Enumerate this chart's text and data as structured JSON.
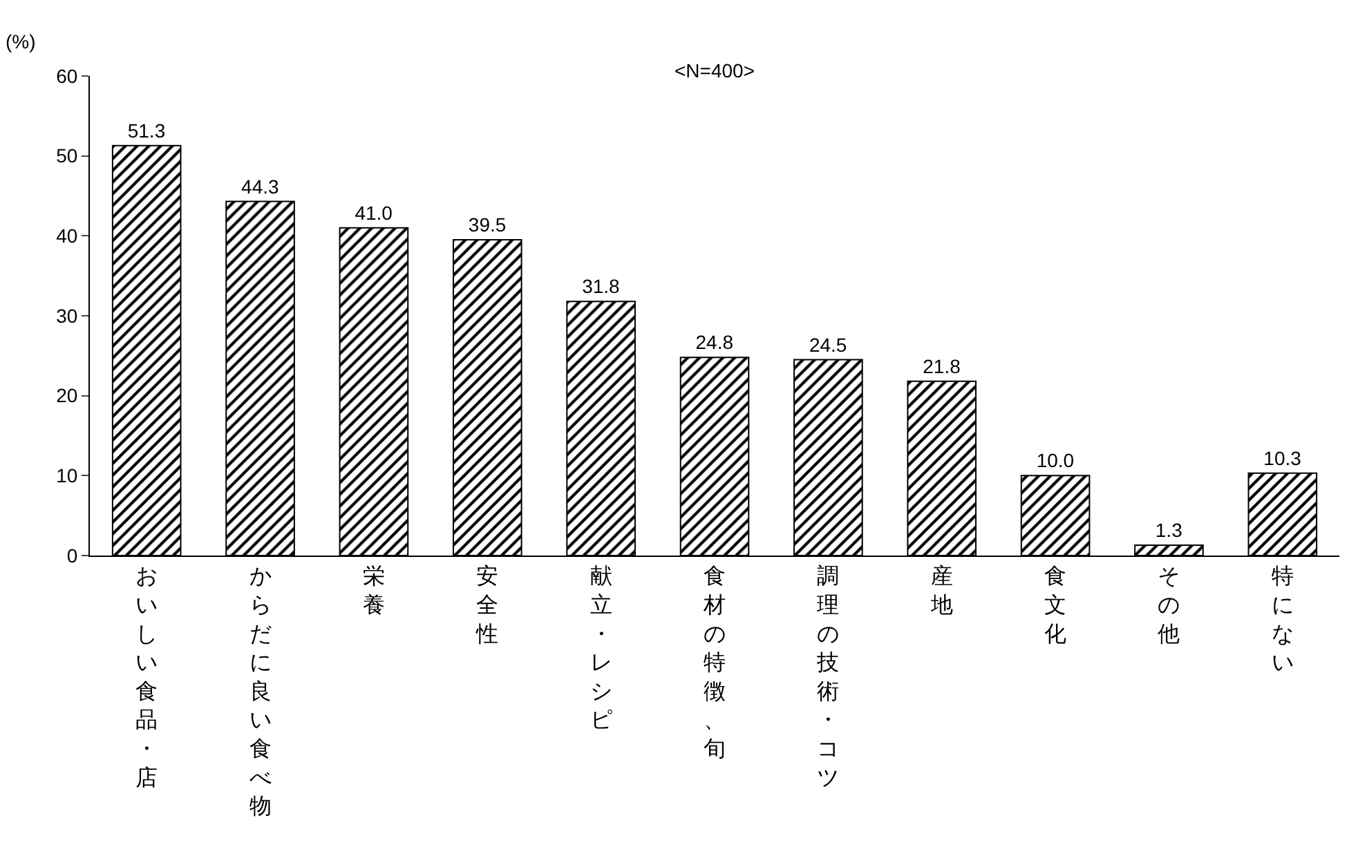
{
  "chart_data": {
    "type": "bar",
    "ylabel": "(%)",
    "annotations": [
      "<N=400>"
    ],
    "categories": [
      "おいしい食品・店",
      "からだに良い食べ物",
      "栄養",
      "安全性",
      "献立・レシピ",
      "食材の特徴、旬",
      "調理の技術・コツ",
      "産地",
      "食文化",
      "その他",
      "特にない"
    ],
    "values": [
      51.3,
      44.3,
      41.0,
      39.5,
      31.8,
      24.8,
      24.5,
      21.8,
      10.0,
      1.3,
      10.3
    ],
    "value_labels": [
      "51.3",
      "44.3",
      "41.0",
      "39.5",
      "31.8",
      "24.8",
      "24.5",
      "21.8",
      "10.0",
      "1.3",
      "10.3"
    ],
    "color": "#000000",
    "ylim": [
      0,
      60
    ],
    "yticks": [
      0,
      10,
      20,
      30,
      40,
      50,
      60
    ],
    "grid": false
  }
}
